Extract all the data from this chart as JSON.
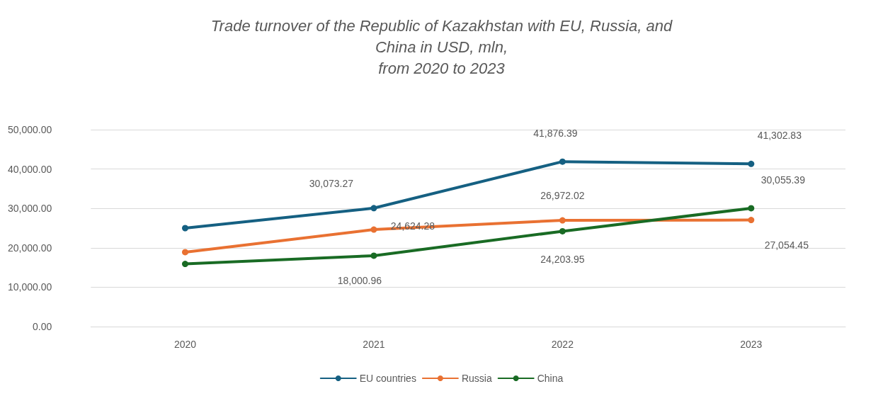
{
  "chart_data": {
    "type": "line",
    "title": "Trade turnover of the Republic of Kazakhstan with EU, Russia, and\nChina in USD, mln,\nfrom 2020 to 2023",
    "categories": [
      "2020",
      "2021",
      "2022",
      "2023"
    ],
    "series": [
      {
        "name": "EU countries",
        "color": "#156082",
        "values": [
          25000,
          30073.27,
          41876.39,
          41302.83
        ],
        "value_labels": [
          null,
          "30,073.27",
          "41,876.39",
          "41,302.83"
        ]
      },
      {
        "name": "Russia",
        "color": "#e97132",
        "values": [
          18900,
          24624.28,
          26972.02,
          27054.45
        ],
        "value_labels": [
          null,
          "24,624.28",
          "26,972.02",
          "27,054.45"
        ]
      },
      {
        "name": "China",
        "color": "#196b24",
        "values": [
          15900,
          18000.96,
          24203.95,
          30055.39
        ],
        "value_labels": [
          null,
          "18,000.96",
          "24,203.95",
          "30,055.39"
        ]
      }
    ],
    "ylim": [
      0,
      50000
    ],
    "yticks": [
      {
        "value": 0,
        "label": "0.00"
      },
      {
        "value": 10000,
        "label": "10,000.00"
      },
      {
        "value": 20000,
        "label": "20,000.00"
      },
      {
        "value": 30000,
        "label": "30,000.00"
      },
      {
        "value": 40000,
        "label": "40,000.00"
      },
      {
        "value": 50000,
        "label": "50,000.00"
      }
    ],
    "grid": "y",
    "legend": "bottom",
    "marker": "circle",
    "line_style": "solid"
  }
}
